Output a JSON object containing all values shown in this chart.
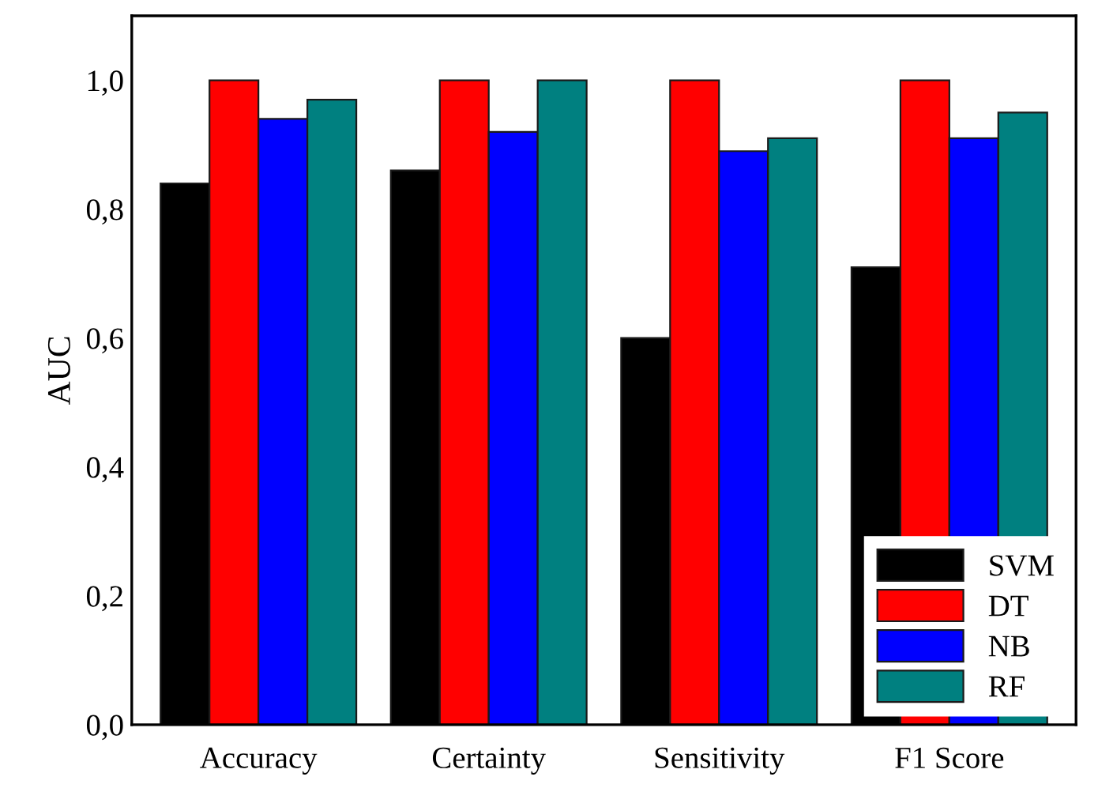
{
  "chart_data": {
    "type": "bar",
    "ylabel": "AUC",
    "categories": [
      "Accuracy",
      "Certainty",
      "Sensitivity",
      "F1 Score"
    ],
    "series": [
      {
        "name": "SVM",
        "color": "#000000",
        "values": [
          0.84,
          0.86,
          0.6,
          0.71
        ]
      },
      {
        "name": "DT",
        "color": "#ff0000",
        "values": [
          1.0,
          1.0,
          1.0,
          1.0
        ]
      },
      {
        "name": "NB",
        "color": "#0000ff",
        "values": [
          0.94,
          0.92,
          0.89,
          0.91
        ]
      },
      {
        "name": "RF",
        "color": "#008080",
        "values": [
          0.97,
          1.0,
          0.91,
          0.95
        ]
      }
    ],
    "ylim": [
      0,
      1.1
    ],
    "yticks": [
      {
        "value": 0,
        "label": "0,0"
      },
      {
        "value": 0.2,
        "label": "0,2"
      },
      {
        "value": 0.4,
        "label": "0,4"
      },
      {
        "value": 0.6,
        "label": "0,6"
      },
      {
        "value": 0.8,
        "label": "0,8"
      },
      {
        "value": 1.0,
        "label": "1,0"
      }
    ],
    "grid": false,
    "legend": "lower right"
  }
}
